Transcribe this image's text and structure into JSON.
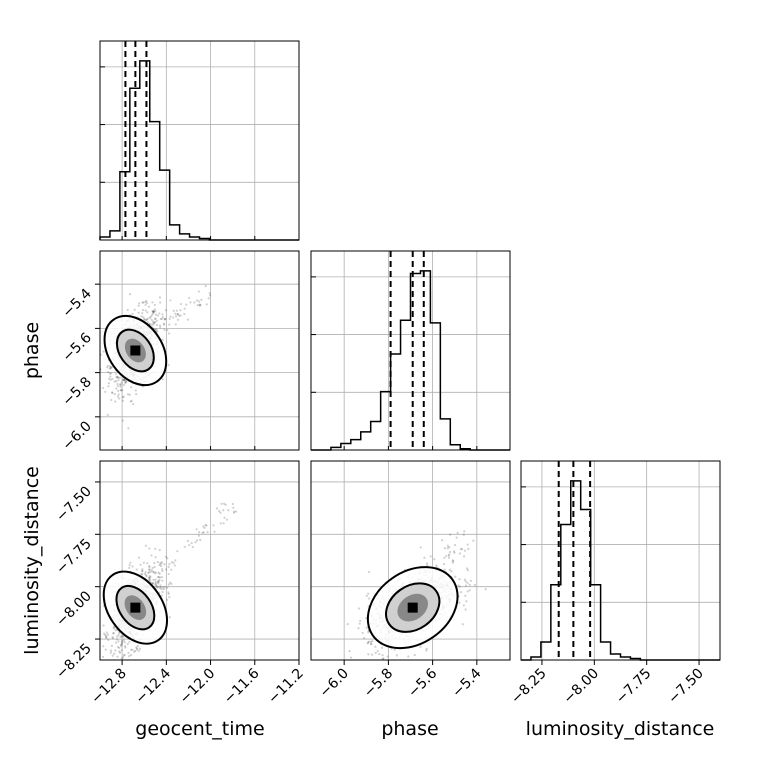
{
  "chart_data": {
    "type": "corner",
    "parameters": [
      "geocent_time",
      "phase",
      "luminosity_distance"
    ],
    "axis_labels": {
      "geocent_time": "geocent_time",
      "phase": "phase",
      "luminosity_distance": "luminosity_distance"
    },
    "ranges": {
      "geocent_time": [
        -13.0,
        -11.2
      ],
      "phase": [
        -6.15,
        -5.25
      ],
      "luminosity_distance": [
        -8.35,
        -7.4
      ]
    },
    "ticks": {
      "geocent_time": [
        -12.8,
        -12.4,
        -12.0,
        -11.6,
        -11.2
      ],
      "phase": [
        -6.0,
        -5.8,
        -5.6,
        -5.4
      ],
      "luminosity_distance": [
        -8.25,
        -8.0,
        -7.75,
        -7.5
      ]
    },
    "tick_labels": {
      "geocent_time": [
        "−12.8",
        "−12.4",
        "−12.0",
        "−11.6",
        "−11.2"
      ],
      "phase": [
        "−6.0",
        "−5.8",
        "−5.6",
        "−5.4"
      ],
      "luminosity_distance": [
        "−8.25",
        "−8.00",
        "−7.75",
        "−7.50"
      ]
    },
    "histograms": {
      "geocent_time": [
        2,
        6,
        45,
        100,
        118,
        78,
        46,
        10,
        4,
        2,
        1,
        0,
        0,
        0,
        0,
        0,
        0,
        0,
        0,
        0
      ],
      "phase": [
        0,
        0,
        2,
        5,
        8,
        14,
        22,
        45,
        74,
        100,
        136,
        138,
        98,
        24,
        4,
        1,
        0,
        0,
        0,
        0
      ],
      "luminosity_distance": [
        0,
        2,
        12,
        50,
        90,
        119,
        100,
        50,
        12,
        4,
        2,
        1,
        0,
        0,
        0,
        0,
        0,
        0,
        0,
        0
      ]
    },
    "quantiles": {
      "geocent_time": [
        -12.77,
        -12.68,
        -12.58
      ],
      "phase": [
        -5.79,
        -5.69,
        -5.64
      ],
      "luminosity_distance": [
        -8.17,
        -8.1,
        -8.02
      ]
    },
    "pairs": [
      {
        "x": "geocent_time",
        "y": "phase",
        "peak": [
          -12.68,
          -5.7
        ],
        "spread": [
          0.11,
          0.09
        ],
        "correlation": 0.4,
        "tail": [
          [
            -12.6,
            -5.62
          ],
          [
            -12.0,
            -5.45
          ]
        ]
      },
      {
        "x": "geocent_time",
        "y": "luminosity_distance",
        "peak": [
          -12.68,
          -8.1
        ],
        "spread": [
          0.11,
          0.1
        ],
        "correlation": 0.5,
        "tail": [
          [
            -12.6,
            -8.03
          ],
          [
            -11.8,
            -7.6
          ]
        ]
      },
      {
        "x": "phase",
        "y": "luminosity_distance",
        "peak": [
          -5.69,
          -8.1
        ],
        "spread": [
          0.1,
          0.09
        ],
        "correlation": 0.55,
        "tail": [
          [
            -5.65,
            -8.02
          ],
          [
            -5.45,
            -7.75
          ]
        ]
      }
    ],
    "grid": true
  }
}
